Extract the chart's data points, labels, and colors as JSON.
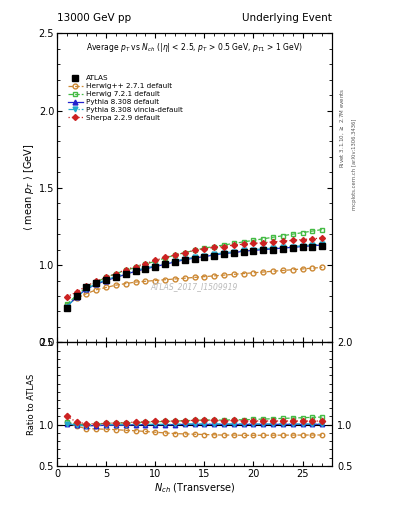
{
  "title_left": "13000 GeV pp",
  "title_right": "Underlying Event",
  "subtitle": "Average $p_T$ vs $N_{ch}$ ($|\\eta|$ < 2.5, $p_T$ > 0.5 GeV, $p_{T1}$ > 1 GeV)",
  "xlabel": "$N_{ch}$ (Transverse)",
  "ylabel_main": "$\\langle$ mean $p_T$ $\\rangle$ [GeV]",
  "ylabel_ratio": "Ratio to ATLAS",
  "right_label_top": "Rivet 3.1.10, $\\geq$ 2.7M events",
  "right_label_bottom": "mcplots.cern.ch [arXiv:1306.3436]",
  "watermark": "ATLAS_2017_I1509919",
  "ylim_main": [
    0.5,
    2.5
  ],
  "ylim_ratio": [
    0.5,
    2.0
  ],
  "xlim": [
    0,
    28
  ],
  "atlas_x": [
    1,
    2,
    3,
    4,
    5,
    6,
    7,
    8,
    9,
    10,
    11,
    12,
    13,
    14,
    15,
    16,
    17,
    18,
    19,
    20,
    21,
    22,
    23,
    24,
    25,
    26,
    27
  ],
  "atlas_y": [
    0.72,
    0.8,
    0.855,
    0.885,
    0.905,
    0.925,
    0.945,
    0.96,
    0.975,
    0.99,
    1.005,
    1.02,
    1.03,
    1.04,
    1.05,
    1.06,
    1.07,
    1.075,
    1.085,
    1.09,
    1.095,
    1.1,
    1.105,
    1.11,
    1.115,
    1.12,
    1.125
  ],
  "herwig271_x": [
    1,
    2,
    3,
    4,
    5,
    6,
    7,
    8,
    9,
    10,
    11,
    12,
    13,
    14,
    15,
    16,
    17,
    18,
    19,
    20,
    21,
    22,
    23,
    24,
    25,
    26,
    27
  ],
  "herwig271_y": [
    0.74,
    0.785,
    0.815,
    0.84,
    0.855,
    0.87,
    0.88,
    0.89,
    0.895,
    0.9,
    0.905,
    0.91,
    0.915,
    0.92,
    0.925,
    0.93,
    0.935,
    0.94,
    0.945,
    0.95,
    0.955,
    0.96,
    0.965,
    0.97,
    0.975,
    0.98,
    0.985
  ],
  "herwig721_x": [
    1,
    2,
    3,
    4,
    5,
    6,
    7,
    8,
    9,
    10,
    11,
    12,
    13,
    14,
    15,
    16,
    17,
    18,
    19,
    20,
    21,
    22,
    23,
    24,
    25,
    26,
    27
  ],
  "herwig721_y": [
    0.745,
    0.805,
    0.855,
    0.89,
    0.92,
    0.945,
    0.965,
    0.985,
    1.005,
    1.025,
    1.045,
    1.065,
    1.08,
    1.095,
    1.11,
    1.12,
    1.13,
    1.14,
    1.15,
    1.16,
    1.17,
    1.18,
    1.19,
    1.2,
    1.21,
    1.22,
    1.23
  ],
  "pythia308_x": [
    1,
    2,
    3,
    4,
    5,
    6,
    7,
    8,
    9,
    10,
    11,
    12,
    13,
    14,
    15,
    16,
    17,
    18,
    19,
    20,
    21,
    22,
    23,
    24,
    25,
    26,
    27
  ],
  "pythia308_y": [
    0.73,
    0.795,
    0.845,
    0.875,
    0.9,
    0.92,
    0.94,
    0.96,
    0.975,
    0.99,
    1.005,
    1.02,
    1.035,
    1.045,
    1.055,
    1.065,
    1.075,
    1.08,
    1.09,
    1.095,
    1.1,
    1.105,
    1.11,
    1.115,
    1.12,
    1.125,
    1.13
  ],
  "pythia308v_x": [
    1,
    2,
    3,
    4,
    5,
    6,
    7,
    8,
    9,
    10,
    11,
    12,
    13,
    14,
    15,
    16,
    17,
    18,
    19,
    20,
    21,
    22,
    23,
    24,
    25,
    26,
    27
  ],
  "pythia308v_y": [
    0.73,
    0.795,
    0.845,
    0.88,
    0.905,
    0.925,
    0.945,
    0.965,
    0.98,
    0.995,
    1.01,
    1.025,
    1.04,
    1.05,
    1.06,
    1.07,
    1.08,
    1.085,
    1.095,
    1.1,
    1.105,
    1.11,
    1.115,
    1.12,
    1.125,
    1.13,
    1.135
  ],
  "sherpa229_x": [
    1,
    2,
    3,
    4,
    5,
    6,
    7,
    8,
    9,
    10,
    11,
    12,
    13,
    14,
    15,
    16,
    17,
    18,
    19,
    20,
    21,
    22,
    23,
    24,
    25,
    26,
    27
  ],
  "sherpa229_y": [
    0.795,
    0.825,
    0.865,
    0.895,
    0.92,
    0.945,
    0.97,
    0.99,
    1.01,
    1.03,
    1.05,
    1.065,
    1.08,
    1.095,
    1.105,
    1.115,
    1.12,
    1.13,
    1.135,
    1.14,
    1.145,
    1.15,
    1.155,
    1.16,
    1.165,
    1.17,
    1.175
  ],
  "color_atlas": "#000000",
  "color_herwig271": "#cc8833",
  "color_herwig721": "#44bb44",
  "color_pythia308": "#2222cc",
  "color_pythia308v": "#22aacc",
  "color_sherpa229": "#cc2222"
}
